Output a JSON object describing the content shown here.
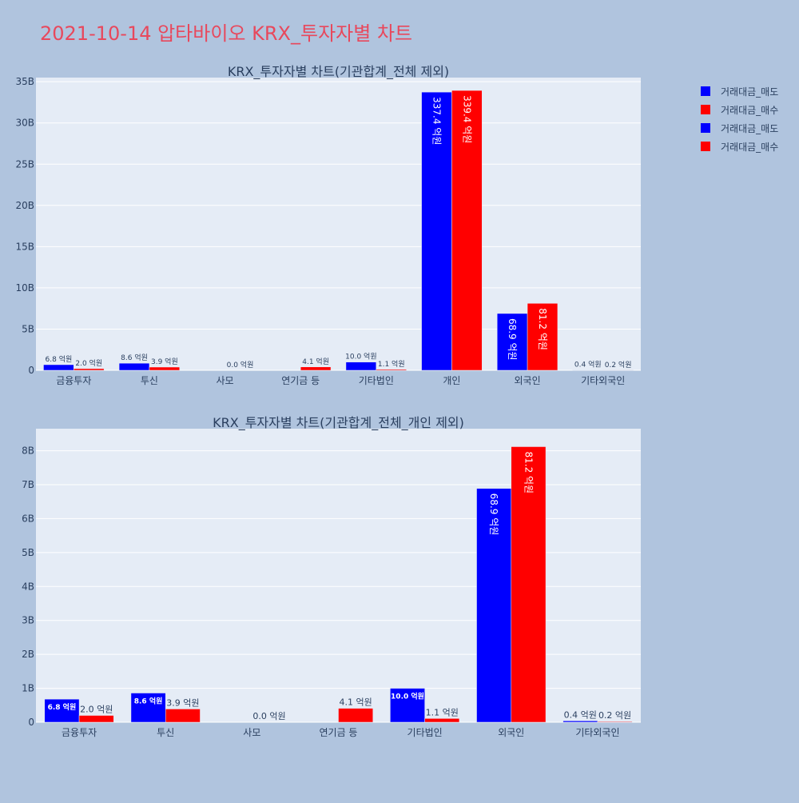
{
  "page_title": "2021-10-14 압타바이오 KRX_투자자별 차트",
  "legend": {
    "entries": [
      {
        "label": "거래대금_매도",
        "color": "#0000ff"
      },
      {
        "label": "거래대금_매수",
        "color": "#ff0000"
      },
      {
        "label": "거래대금_매도",
        "color": "#0000ff"
      },
      {
        "label": "거래대금_매수",
        "color": "#ff0000"
      }
    ]
  },
  "chart_data": [
    {
      "type": "bar",
      "title": "KRX_투자자별 차트(기관합계_전체 제외)",
      "categories": [
        "금융투자",
        "투신",
        "사모",
        "연기금 등",
        "기타법인",
        "개인",
        "외국인",
        "기타외국인"
      ],
      "series": [
        {
          "name": "거래대금_매도",
          "color": "#0000ff",
          "values": [
            680000000,
            860000000,
            0,
            0,
            1000000000,
            33740000000,
            6890000000,
            40000000
          ],
          "labels": [
            "6.8 억원",
            "8.6 억원",
            "",
            "",
            "10.0 억원",
            "337.4 억원",
            "68.9 억원",
            "0.4 억원"
          ]
        },
        {
          "name": "거래대금_매수",
          "color": "#ff0000",
          "values": [
            200000000,
            390000000,
            0,
            410000000,
            110000000,
            33940000000,
            8120000000,
            20000000
          ],
          "labels": [
            "2.0 억원",
            "3.9 억원",
            "0.0 억원",
            "4.1 억원",
            "1.1 억원",
            "339.4 억원",
            "81.2 억원",
            "0.2 억원"
          ]
        }
      ],
      "yticks": [
        0,
        5000000000,
        10000000000,
        15000000000,
        20000000000,
        25000000000,
        30000000000,
        35000000000
      ],
      "ytick_labels": [
        "0",
        "5B",
        "10B",
        "15B",
        "20B",
        "25B",
        "30B",
        "35B"
      ],
      "ylim": [
        0,
        35500000000
      ],
      "grid": true,
      "legend_position": "top-right"
    },
    {
      "type": "bar",
      "title": "KRX_투자자별 차트(기관합계_전체_개인 제외)",
      "categories": [
        "금융투자",
        "투신",
        "사모",
        "연기금 등",
        "기타법인",
        "외국인",
        "기타외국인"
      ],
      "series": [
        {
          "name": "거래대금_매도",
          "color": "#0000ff",
          "values": [
            680000000,
            860000000,
            0,
            0,
            1000000000,
            6890000000,
            40000000
          ],
          "labels": [
            "6.8 억원",
            "8.6 억원",
            "",
            "",
            "10.0 억원",
            "68.9 억원",
            "0.4 억원"
          ]
        },
        {
          "name": "거래대금_매수",
          "color": "#ff0000",
          "values": [
            200000000,
            390000000,
            0,
            410000000,
            110000000,
            8120000000,
            20000000
          ],
          "labels": [
            "2.0 억원",
            "3.9 억원",
            "0.0 억원",
            "4.1 억원",
            "1.1 억원",
            "81.2 억원",
            "0.2 억원"
          ]
        }
      ],
      "yticks": [
        0,
        1000000000,
        2000000000,
        3000000000,
        4000000000,
        5000000000,
        6000000000,
        7000000000,
        8000000000
      ],
      "ytick_labels": [
        "0",
        "1B",
        "2B",
        "3B",
        "4B",
        "5B",
        "6B",
        "7B",
        "8B"
      ],
      "ylim": [
        0,
        8650000000
      ],
      "grid": true,
      "legend_position": "top-right"
    }
  ]
}
